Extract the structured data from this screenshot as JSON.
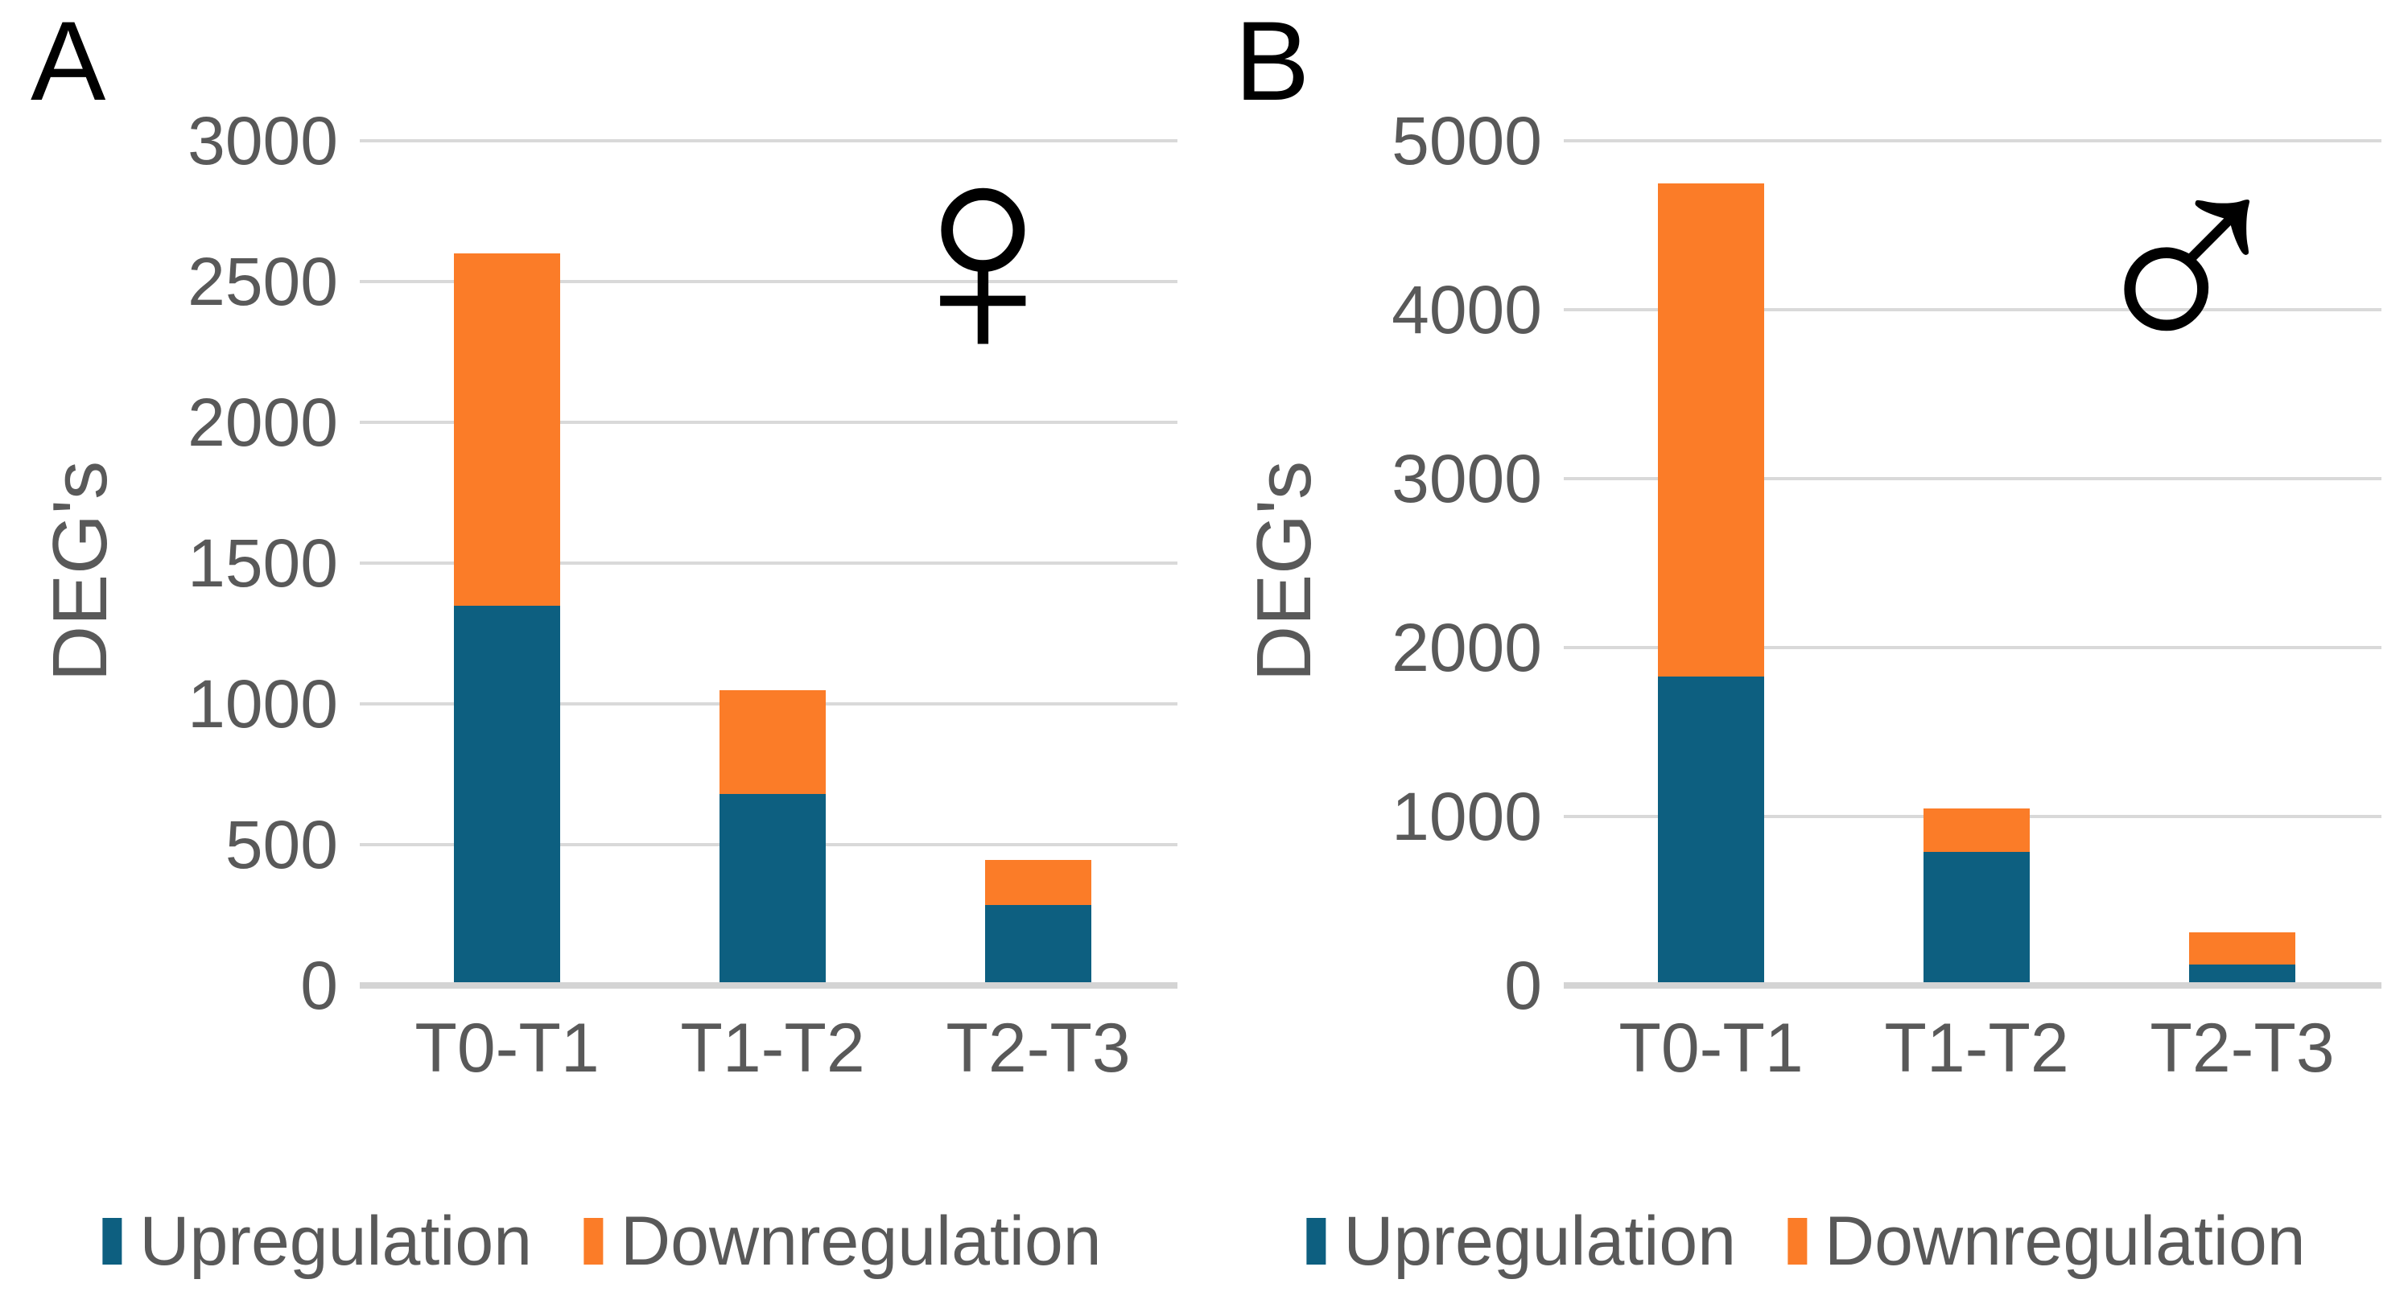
{
  "colors": {
    "upregulation": "#0D5F80",
    "downregulation": "#FB7C28",
    "axis_text": "#595959",
    "gridline": "#D9D9D9",
    "axis_line": "#D4D4D4",
    "panel_label": "#000000",
    "symbol": "#000000"
  },
  "chart_data": [
    {
      "type": "bar",
      "stacked": true,
      "panel_label": "A",
      "symbol": "female-sign",
      "symbol_glyph": "♀",
      "title": "",
      "xlabel": "",
      "ylabel": "DEG's",
      "ylim": [
        0,
        3000
      ],
      "yticks": [
        0,
        500,
        1000,
        1500,
        2000,
        2500,
        3000
      ],
      "grid": "horizontal",
      "legend_position": "bottom",
      "categories": [
        "T0-T1",
        "T1-T2",
        "T2-T3"
      ],
      "series": [
        {
          "name": "Upregulation",
          "values": [
            1350,
            680,
            285
          ]
        },
        {
          "name": "Downregulation",
          "values": [
            1250,
            370,
            160
          ]
        }
      ],
      "totals": [
        2600,
        1050,
        445
      ]
    },
    {
      "type": "bar",
      "stacked": true,
      "panel_label": "B",
      "symbol": "male-sign",
      "symbol_glyph": "♂",
      "title": "",
      "xlabel": "",
      "ylabel": "DEG's",
      "ylim": [
        0,
        5000
      ],
      "yticks": [
        0,
        1000,
        2000,
        3000,
        4000,
        5000
      ],
      "grid": "horizontal",
      "legend_position": "bottom",
      "categories": [
        "T0-T1",
        "T1-T2",
        "T2-T3"
      ],
      "series": [
        {
          "name": "Upregulation",
          "values": [
            1830,
            790,
            125
          ]
        },
        {
          "name": "Downregulation",
          "values": [
            2920,
            260,
            190
          ]
        }
      ],
      "totals": [
        4750,
        1050,
        315
      ]
    }
  ]
}
